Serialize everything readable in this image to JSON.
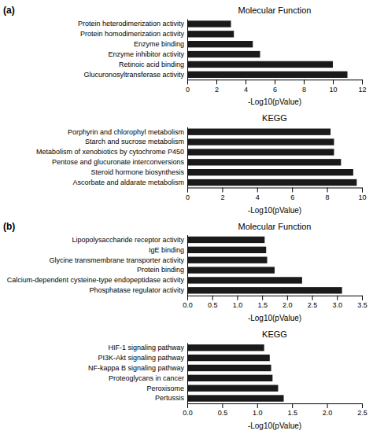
{
  "chart_data": [
    {
      "type": "bar",
      "orientation": "horizontal",
      "title": "Molecular Function",
      "annotations": [
        {
          "text": "(a)"
        }
      ],
      "categories": [
        "Glucuronosyltransferase activity",
        "Retinoic acid binding",
        "Enzyme inhibitor activity",
        "Enzyme binding",
        "Protein homodimerization activity",
        "Protein heterodimerization activity"
      ],
      "values": [
        11.0,
        10.0,
        5.0,
        4.5,
        3.2,
        3.0
      ],
      "color": "#1a1a1a",
      "xlim": [
        0,
        12
      ],
      "xticks": [
        0,
        2,
        4,
        6,
        8,
        10,
        12
      ],
      "xlabel": "-Log10(pValue)",
      "grid": false
    },
    {
      "type": "bar",
      "orientation": "horizontal",
      "title": "KEGG",
      "categories": [
        "Ascorbate and aldarate metabolism",
        "Steroid hormone biosynthesis",
        "Pentose and glucuronate interconversions",
        "Metabolism of xenobiotics by cytochrome P450",
        "Starch and sucrose metabolism",
        "Porphyrin and chlorophyl metabolism"
      ],
      "values": [
        9.7,
        9.5,
        8.8,
        8.4,
        8.4,
        8.2
      ],
      "color": "#1a1a1a",
      "xlim": [
        0,
        10
      ],
      "xticks": [
        0,
        2,
        4,
        6,
        8,
        10
      ],
      "xlabel": "-Log10(pValue)",
      "grid": false
    },
    {
      "type": "bar",
      "orientation": "horizontal",
      "title": "Molecular Function",
      "annotations": [
        {
          "text": "(b)"
        }
      ],
      "categories": [
        "Phosphatase regulator activity",
        "Calcium-dependent cysteine-type endopeptidase activity",
        "Protein binding",
        "Glycine transmembrane transporter activity",
        "IgE binding",
        "Lipopolysaccharide receptor activity"
      ],
      "values": [
        3.1,
        2.3,
        1.75,
        1.6,
        1.58,
        1.55
      ],
      "color": "#1a1a1a",
      "xlim": [
        0.0,
        3.5
      ],
      "xticks": [
        {
          "value": 0,
          "label": "0.0"
        },
        0.5,
        {
          "value": 1,
          "label": "1.0"
        },
        1.5,
        {
          "value": 2,
          "label": "2.0"
        },
        2.5,
        {
          "value": 3,
          "label": "3.0"
        },
        3.5
      ],
      "xlabel": "-Log10(pValue)",
      "grid": false
    },
    {
      "type": "bar",
      "orientation": "horizontal",
      "title": "KEGG",
      "categories": [
        "Pertussis",
        "Peroxisome",
        "Proteoglycans in cancer",
        "NF-kappa B signaling pathway",
        "PI3K-Akt signaling pathway",
        "HIF-1 signaling pathway"
      ],
      "values": [
        1.38,
        1.3,
        1.22,
        1.2,
        1.18,
        1.1
      ],
      "color": "#1a1a1a",
      "xlim": [
        0.0,
        2.5
      ],
      "xticks": [
        {
          "value": 0,
          "label": "0.0"
        },
        0.5,
        {
          "value": 1,
          "label": "1.0"
        },
        1.5,
        {
          "value": 2,
          "label": "2.0"
        },
        2.5
      ],
      "xlabel": "-Log10(pValue)",
      "grid": false
    }
  ]
}
